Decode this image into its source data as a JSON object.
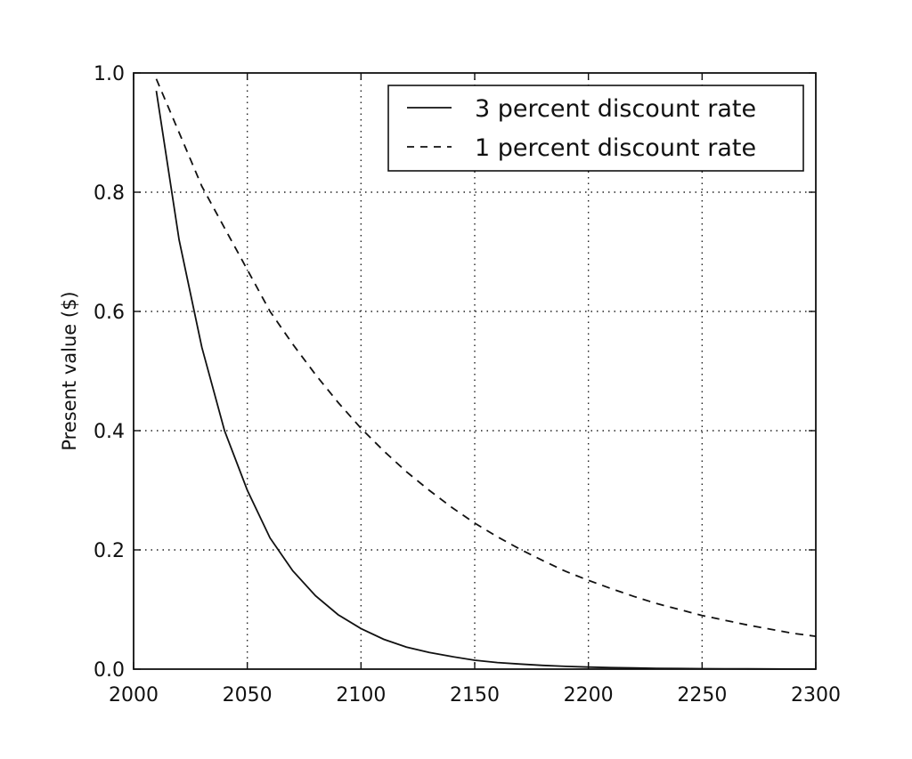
{
  "chart_data": {
    "type": "line",
    "title": "",
    "xlabel": "",
    "ylabel": "Present value ($)",
    "xlim": [
      2000,
      2300
    ],
    "ylim": [
      0.0,
      1.0
    ],
    "x_ticks": [
      2000,
      2050,
      2100,
      2150,
      2200,
      2250,
      2300
    ],
    "x_tick_labels": [
      "2000",
      "2050",
      "2100",
      "2150",
      "2200",
      "2250",
      "2300"
    ],
    "y_ticks": [
      0.0,
      0.2,
      0.4,
      0.6,
      0.8,
      1.0
    ],
    "y_tick_labels": [
      "0.0",
      "0.2",
      "0.4",
      "0.6",
      "0.8",
      "1.0"
    ],
    "grid": true,
    "legend_position": "top-right",
    "series": [
      {
        "name": "3 percent discount rate",
        "style": "solid",
        "color": "#111111",
        "x": [
          2010,
          2020,
          2030,
          2040,
          2050,
          2060,
          2070,
          2080,
          2090,
          2100,
          2110,
          2120,
          2130,
          2140,
          2150,
          2160,
          2170,
          2180,
          2190,
          2200,
          2210,
          2220,
          2230,
          2240,
          2250,
          2260,
          2270,
          2280,
          2290,
          2300
        ],
        "y": [
          0.97,
          0.72,
          0.54,
          0.4,
          0.3,
          0.22,
          0.165,
          0.123,
          0.091,
          0.068,
          0.05,
          0.037,
          0.028,
          0.021,
          0.015,
          0.011,
          0.0085,
          0.0063,
          0.0047,
          0.0035,
          0.0026,
          0.0019,
          0.0014,
          0.0011,
          0.0008,
          0.0006,
          0.0004,
          0.0003,
          0.0002,
          0.0002
        ]
      },
      {
        "name": "1 percent discount rate",
        "style": "dashed",
        "color": "#111111",
        "x": [
          2010,
          2020,
          2030,
          2040,
          2050,
          2060,
          2070,
          2080,
          2090,
          2100,
          2110,
          2120,
          2130,
          2140,
          2150,
          2160,
          2170,
          2180,
          2190,
          2200,
          2210,
          2220,
          2230,
          2240,
          2250,
          2260,
          2270,
          2280,
          2290,
          2300
        ],
        "y": [
          0.99,
          0.9,
          0.81,
          0.74,
          0.67,
          0.6,
          0.545,
          0.494,
          0.447,
          0.404,
          0.366,
          0.331,
          0.3,
          0.271,
          0.245,
          0.222,
          0.201,
          0.182,
          0.164,
          0.149,
          0.135,
          0.122,
          0.11,
          0.1,
          0.09,
          0.082,
          0.074,
          0.067,
          0.06,
          0.055
        ]
      }
    ]
  }
}
